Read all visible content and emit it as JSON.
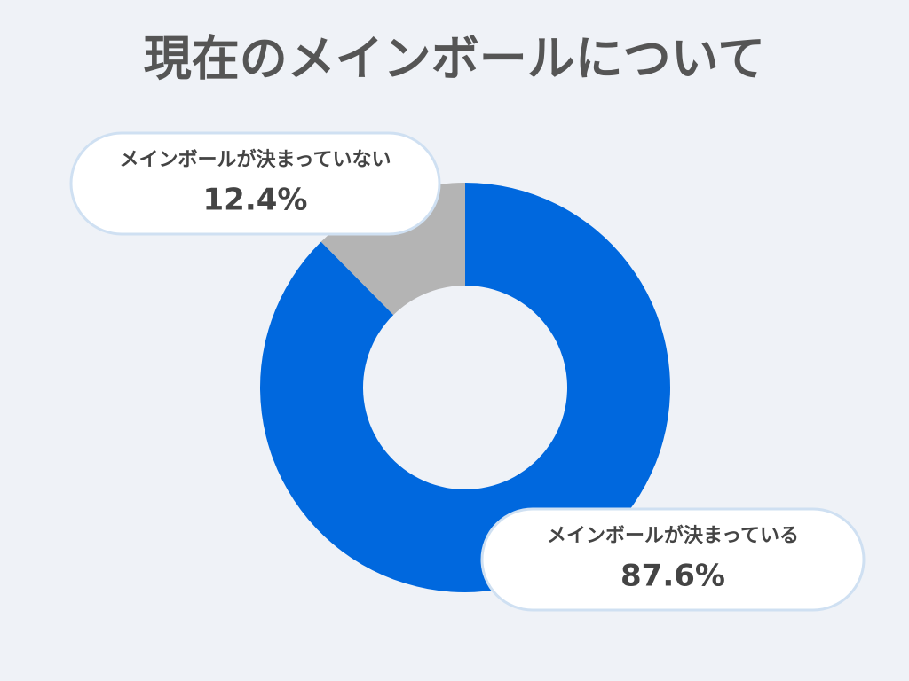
{
  "chart_data": {
    "type": "donut",
    "title": "現在のメインボールについて",
    "categories": [
      "メインボールが決まっている",
      "メインボールが決まっていない"
    ],
    "values": [
      87.6,
      12.4
    ],
    "value_labels": [
      "87.6%",
      "12.4%"
    ],
    "colors": [
      "#0068de",
      "#b4b4b4"
    ]
  }
}
